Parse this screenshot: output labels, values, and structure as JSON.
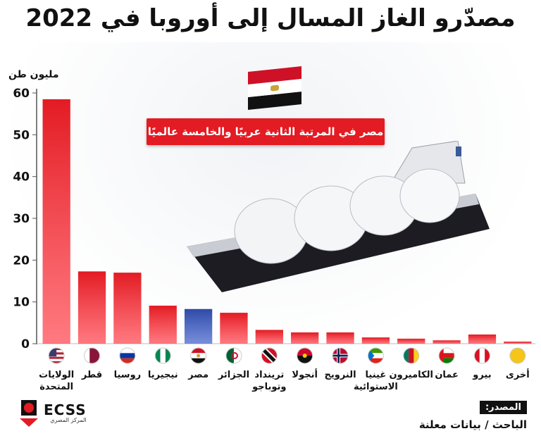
{
  "title": "مصدّرو الغاز المسال إلى أوروبا في 2022",
  "badge": "مصر في المرتبة الثانية عربيًا والخامسة عالميًا",
  "source": {
    "label": "المصدر:",
    "text": "الباحث / بيانات معلنة"
  },
  "logo": {
    "name": "ECSS",
    "subtitle": "المركز المصري"
  },
  "colors": {
    "bar": "#e31b23",
    "highlight": "#2e4aa8",
    "badge": "#e31b23"
  },
  "chart_data": {
    "type": "bar",
    "title": "مصدّرو الغاز المسال إلى أوروبا في 2022",
    "ylabel": "مليون طن",
    "xlabel": "",
    "ylim": [
      0,
      60
    ],
    "yticks": [
      0,
      10,
      20,
      30,
      40,
      50,
      60
    ],
    "grid": false,
    "highlight": "مصر",
    "categories": [
      {
        "lines": [
          "الولايات",
          "المتحدة"
        ],
        "flag": "us-flag"
      },
      {
        "lines": [
          "قطر"
        ],
        "flag": "qatar-flag"
      },
      {
        "lines": [
          "روسيا"
        ],
        "flag": "russia-flag"
      },
      {
        "lines": [
          "نيجيريا"
        ],
        "flag": "nigeria-flag"
      },
      {
        "lines": [
          "مصر"
        ],
        "flag": "egypt-flag"
      },
      {
        "lines": [
          "الجزائر"
        ],
        "flag": "algeria-flag"
      },
      {
        "lines": [
          "ترينداد",
          "وتوباجو"
        ],
        "flag": "trinidad-flag"
      },
      {
        "lines": [
          "أنجولا"
        ],
        "flag": "angola-flag"
      },
      {
        "lines": [
          "النرويج"
        ],
        "flag": "norway-flag"
      },
      {
        "lines": [
          "غينيا",
          "الاستوائية"
        ],
        "flag": "eq-guinea-flag"
      },
      {
        "lines": [
          "الكاميرون"
        ],
        "flag": "cameroon-flag"
      },
      {
        "lines": [
          "عمان"
        ],
        "flag": "oman-flag"
      },
      {
        "lines": [
          "بيرو"
        ],
        "flag": "peru-flag"
      },
      {
        "lines": [
          "أخرى"
        ],
        "flag": "other-dot"
      }
    ],
    "values": [
      58.5,
      17.3,
      17.0,
      9.1,
      8.3,
      7.4,
      3.3,
      2.7,
      2.7,
      1.5,
      1.2,
      0.8,
      2.2,
      0.5
    ]
  }
}
